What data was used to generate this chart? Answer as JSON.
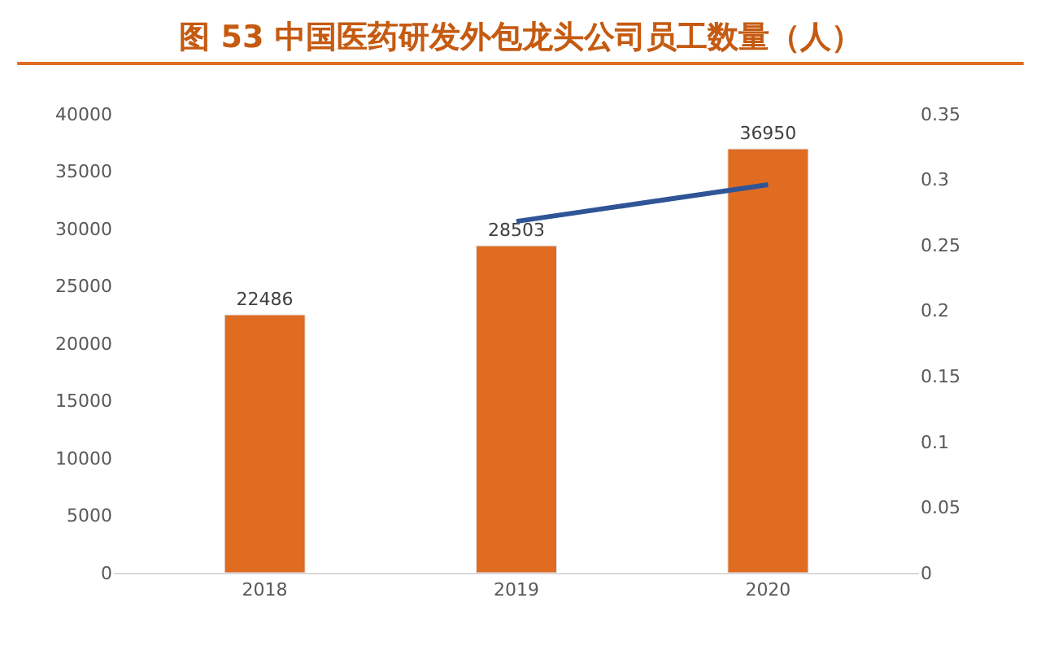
{
  "chart_data": {
    "type": "bar",
    "title": "图 53 中国医药研发外包龙头公司员工数量（人）",
    "categories": [
      "2018",
      "2019",
      "2020"
    ],
    "series": [
      {
        "color": "#e06c22",
        "values": [
          22486,
          28503,
          36950
        ]
      },
      {
        "type": "line",
        "axis": "y2",
        "color": "#2f5597",
        "values": [
          null,
          0.268,
          0.296
        ]
      }
    ],
    "ylim": [
      0,
      40000
    ],
    "yticks": [
      0,
      5000,
      10000,
      15000,
      20000,
      25000,
      30000,
      35000,
      40000
    ],
    "y2lim": [
      0,
      0.35
    ],
    "y2ticks": [
      0,
      0.05,
      0.1,
      0.15,
      0.2,
      0.25,
      0.3,
      0.35
    ],
    "value_labels": [
      "22486",
      "28503",
      "36950"
    ],
    "marker": "none",
    "line_style": "solid"
  }
}
